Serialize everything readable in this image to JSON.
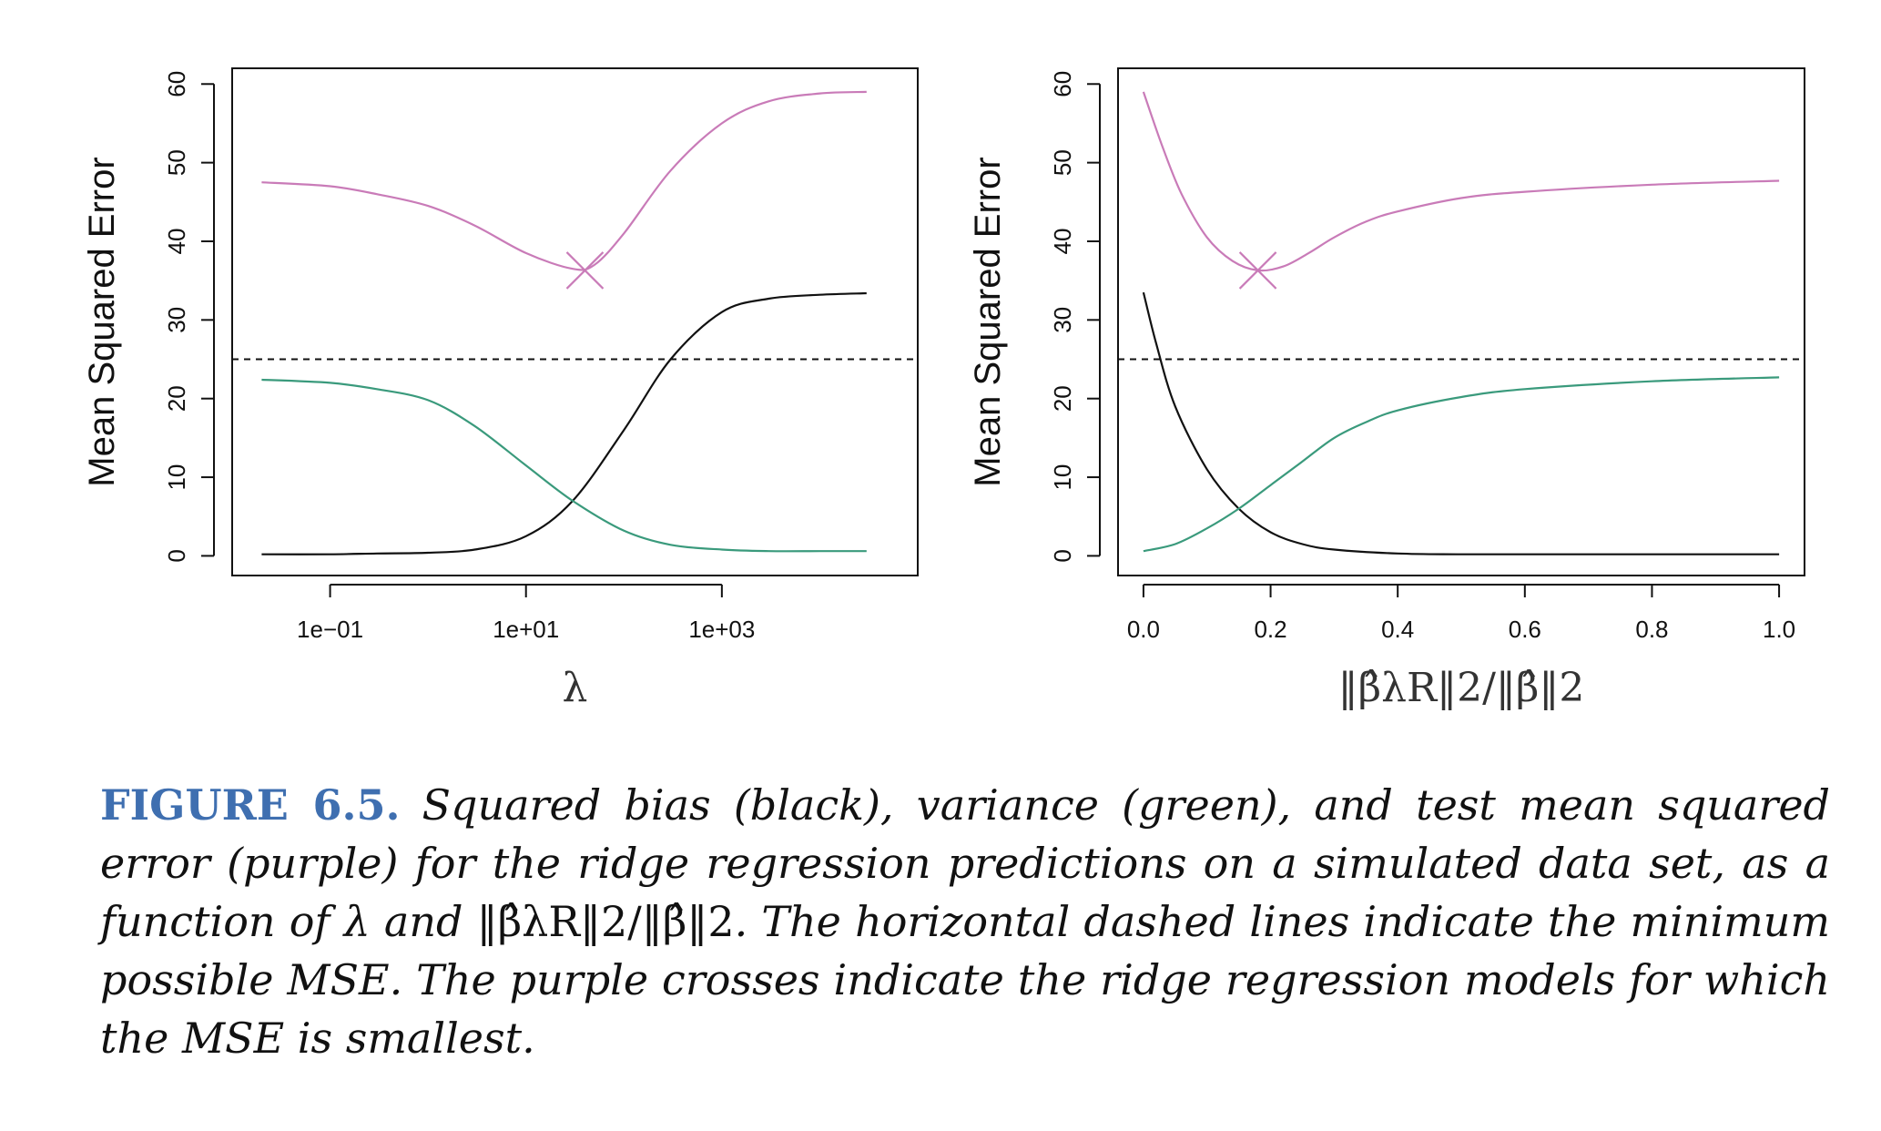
{
  "caption": {
    "figure_label": "FIGURE 6.5.",
    "text_1": "Squared bias (black), variance (green), and test mean squared error (purple) for the ridge regression predictions on a simulated data set, as a function of λ and ",
    "norm_expr": "‖β̂λR‖2/‖β̂‖2",
    "text_2": ". The horizontal dashed lines indicate the minimum possible MSE. The purple crosses indicate the ridge regression models for which the MSE is smallest."
  },
  "colors": {
    "bias": "#111111",
    "variance": "#3a9a7c",
    "mse": "#c97bb8",
    "dashed": "#111111"
  },
  "chart_data": [
    {
      "type": "line",
      "xscale": "log",
      "xlabel": "λ",
      "ylabel": "Mean Squared Error",
      "xlim": [
        0.01,
        100000
      ],
      "ylim": [
        -2.5,
        62
      ],
      "xticks": [
        0.1,
        10,
        1000
      ],
      "xtick_labels": [
        "1e−01",
        "1e+01",
        "1e+03"
      ],
      "yticks": [
        0,
        10,
        20,
        30,
        40,
        50,
        60
      ],
      "ytick_labels": [
        "0",
        "10",
        "20",
        "30",
        "40",
        "50",
        "60"
      ],
      "min_mse_line": 25,
      "series": [
        {
          "key": "bias",
          "x": [
            0.02,
            0.1,
            0.3,
            1,
            3,
            10,
            30,
            100,
            300,
            1000,
            3000,
            10000,
            30000
          ],
          "values": [
            0.2,
            0.2,
            0.3,
            0.4,
            0.8,
            2.5,
            7,
            16,
            25,
            31,
            32.7,
            33.2,
            33.4
          ]
        },
        {
          "key": "variance",
          "x": [
            0.02,
            0.1,
            0.3,
            1,
            3,
            10,
            30,
            100,
            300,
            1000,
            3000,
            10000,
            30000
          ],
          "values": [
            22.4,
            22,
            21.2,
            19.8,
            16.5,
            11.5,
            7,
            3.2,
            1.4,
            0.8,
            0.6,
            0.6,
            0.6
          ]
        },
        {
          "key": "mse",
          "x": [
            0.02,
            0.1,
            0.3,
            1,
            3,
            10,
            30,
            50,
            100,
            300,
            1000,
            3000,
            10000,
            30000
          ],
          "values": [
            47.5,
            47,
            46,
            44.5,
            42,
            38.5,
            36.5,
            37,
            41,
            49,
            55,
            57.8,
            58.8,
            59
          ]
        }
      ],
      "min_marker": {
        "x": 40,
        "y": 36.3
      }
    },
    {
      "type": "line",
      "xscale": "linear",
      "xlabel": "‖β̂λR‖2/‖β̂‖2",
      "ylabel": "Mean Squared Error",
      "xlim": [
        -0.04,
        1.04
      ],
      "ylim": [
        -2.5,
        62
      ],
      "xticks": [
        0,
        0.2,
        0.4,
        0.6,
        0.8,
        1.0
      ],
      "xtick_labels": [
        "0.0",
        "0.2",
        "0.4",
        "0.6",
        "0.8",
        "1.0"
      ],
      "yticks": [
        0,
        10,
        20,
        30,
        40,
        50,
        60
      ],
      "ytick_labels": [
        "0",
        "10",
        "20",
        "30",
        "40",
        "50",
        "60"
      ],
      "min_mse_line": 25,
      "series": [
        {
          "key": "bias",
          "x": [
            0,
            0.02,
            0.05,
            0.1,
            0.15,
            0.2,
            0.25,
            0.3,
            0.4,
            0.5,
            0.7,
            1.0
          ],
          "values": [
            33.5,
            27,
            19,
            11,
            6,
            3,
            1.5,
            0.8,
            0.3,
            0.2,
            0.2,
            0.2
          ]
        },
        {
          "key": "variance",
          "x": [
            0,
            0.05,
            0.1,
            0.15,
            0.2,
            0.25,
            0.3,
            0.35,
            0.4,
            0.5,
            0.6,
            0.8,
            1.0
          ],
          "values": [
            0.6,
            1.5,
            3.5,
            6,
            9,
            12,
            15,
            17,
            18.5,
            20.2,
            21.2,
            22.2,
            22.7
          ]
        },
        {
          "key": "mse",
          "x": [
            0,
            0.03,
            0.06,
            0.1,
            0.14,
            0.18,
            0.22,
            0.26,
            0.3,
            0.35,
            0.4,
            0.5,
            0.6,
            0.8,
            1.0
          ],
          "values": [
            59,
            52,
            46,
            40.5,
            37.5,
            36.3,
            36.8,
            38.5,
            40.5,
            42.5,
            43.8,
            45.5,
            46.3,
            47.2,
            47.7
          ]
        }
      ],
      "min_marker": {
        "x": 0.18,
        "y": 36.3
      }
    }
  ]
}
